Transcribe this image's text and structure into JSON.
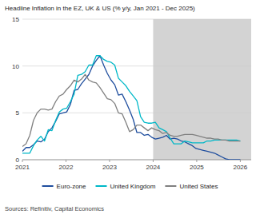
{
  "chart_data": {
    "type": "line",
    "title": "Headline Inflation in the EZ, UK & US (% y/y, Jan 2021 - Dec 2025)",
    "source": "Sources: Refinitiv, Capital Economics",
    "x": [
      2021.0,
      2021.0847,
      2021.1695,
      2021.2542,
      2021.339,
      2021.4237,
      2021.5085,
      2021.5932,
      2021.678,
      2021.7627,
      2021.8475,
      2021.9322,
      2022.0169,
      2022.1017,
      2022.1864,
      2022.2712,
      2022.3559,
      2022.4407,
      2022.5254,
      2022.6102,
      2022.6949,
      2022.7797,
      2022.8644,
      2022.9492,
      2023.0339,
      2023.1186,
      2023.2034,
      2023.2881,
      2023.3729,
      2023.4576,
      2023.5424,
      2023.6271,
      2023.7119,
      2023.7966,
      2023.8814,
      2023.9661,
      2024.0508,
      2024.1356,
      2024.2203,
      2024.3051,
      2024.3898,
      2024.4746,
      2024.5593,
      2024.6441,
      2024.7288,
      2024.8136,
      2024.8983,
      2024.9831,
      2025.0678,
      2025.1525,
      2025.2373,
      2025.322,
      2025.4068,
      2025.4915,
      2025.5763,
      2025.661,
      2025.7458,
      2025.8305,
      2025.9153,
      2026.0
    ],
    "series": [
      {
        "name": "Euro-zone",
        "color": "#1f4e9e",
        "values": [
          0.9,
          1.3,
          1.3,
          1.6,
          2.0,
          1.9,
          2.2,
          3.0,
          3.4,
          4.1,
          4.9,
          5.0,
          5.1,
          5.9,
          7.4,
          7.5,
          8.1,
          8.6,
          9.1,
          10.0,
          10.6,
          11.1,
          10.1,
          9.2,
          8.5,
          8.0,
          6.9,
          7.0,
          6.2,
          5.3,
          4.3,
          2.9,
          2.9,
          2.6,
          2.7,
          2.4,
          2.2,
          2.3,
          2.4,
          2.6,
          2.2,
          2.3,
          2.2,
          2.0,
          1.9,
          1.7,
          1.5,
          1.2,
          1.1,
          1.0,
          0.9,
          0.8,
          0.7,
          0.5,
          0.3,
          0.1,
          0.0,
          0.0,
          0.0,
          0.0
        ]
      },
      {
        "name": "United Kingdom",
        "color": "#00b8c8",
        "values": [
          0.7,
          0.7,
          0.7,
          1.5,
          2.1,
          2.5,
          2.0,
          3.2,
          3.1,
          4.2,
          5.1,
          5.4,
          5.5,
          6.2,
          7.0,
          9.0,
          9.1,
          9.4,
          10.1,
          10.1,
          11.1,
          11.1,
          10.7,
          10.5,
          10.4,
          10.1,
          8.7,
          8.3,
          7.9,
          7.3,
          6.8,
          6.3,
          4.6,
          4.0,
          3.9,
          3.9,
          4.0,
          3.4,
          3.2,
          3.0,
          2.3,
          1.7,
          1.7,
          1.7,
          2.0,
          1.9,
          1.8,
          1.8,
          1.8,
          1.8,
          2.0,
          2.0,
          2.1,
          2.1,
          2.1,
          2.1,
          2.1,
          2.1,
          2.1,
          2.0
        ]
      },
      {
        "name": "United States",
        "color": "#808080",
        "values": [
          1.4,
          1.7,
          2.6,
          4.2,
          5.0,
          5.4,
          5.4,
          5.3,
          5.4,
          6.2,
          6.8,
          7.0,
          7.5,
          7.9,
          8.5,
          8.3,
          8.6,
          9.1,
          8.5,
          8.3,
          8.2,
          7.7,
          7.1,
          6.5,
          6.4,
          6.0,
          5.0,
          4.9,
          4.0,
          3.0,
          3.2,
          3.7,
          3.7,
          3.4,
          3.1,
          3.4,
          3.2,
          3.1,
          2.8,
          2.9,
          2.6,
          2.5,
          2.5,
          2.6,
          2.7,
          2.7,
          2.7,
          2.6,
          2.5,
          2.4,
          2.3,
          2.3,
          2.2,
          2.2,
          2.1,
          2.1,
          2.0,
          2.0,
          2.0,
          2.0
        ]
      }
    ],
    "shading": {
      "start": 2024.0,
      "end": 2026.25,
      "color": "#d3d3d3"
    },
    "xlim": [
      2021.0,
      2026.25
    ],
    "xticks": [
      2021,
      2022,
      2023,
      2024,
      2025,
      2026
    ],
    "ylim": [
      0,
      15
    ],
    "yticks": [
      0,
      5,
      10,
      15
    ],
    "grid": true,
    "legend": "bottom"
  }
}
